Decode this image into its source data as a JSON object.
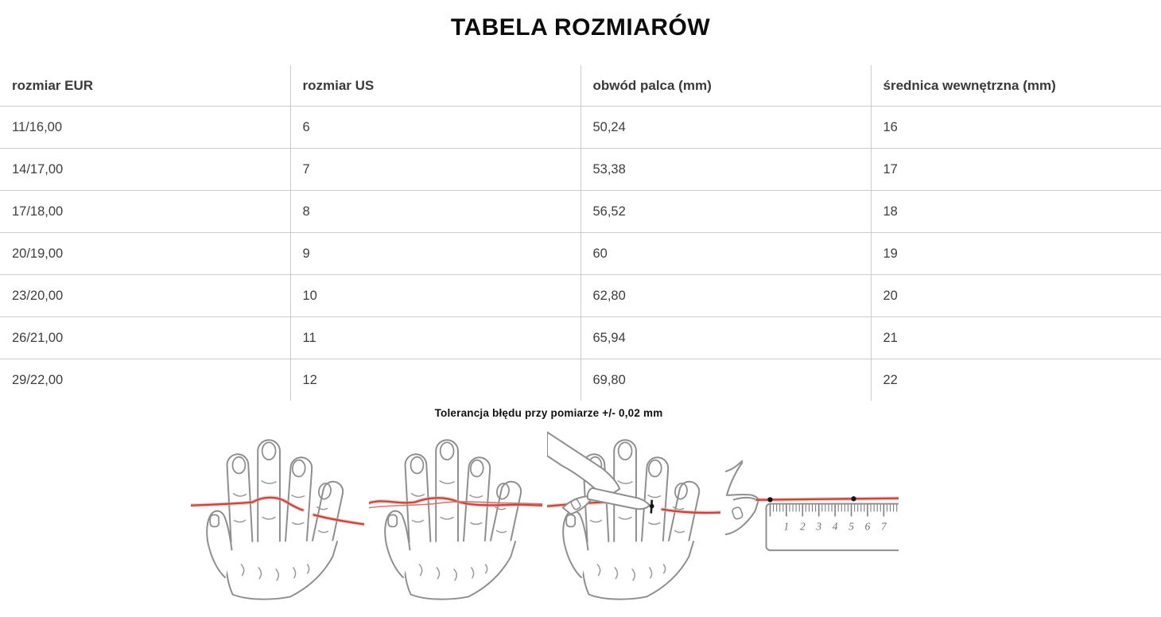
{
  "page": {
    "title": "TABELA ROZMIARÓW",
    "tolerance_note": "Tolerancja błędu przy pomiarze +/- 0,02 mm"
  },
  "table": {
    "columns": [
      "rozmiar EUR",
      "rozmiar US",
      "obwód palca (mm)",
      "średnica wewnętrzna (mm)"
    ],
    "rows": [
      [
        "11/16,00",
        "6",
        "50,24",
        "16"
      ],
      [
        "14/17,00",
        "7",
        "53,38",
        "17"
      ],
      [
        "17/18,00",
        "8",
        "56,52",
        "18"
      ],
      [
        "20/19,00",
        "9",
        "60",
        "19"
      ],
      [
        "23/20,00",
        "10",
        "62,80",
        "20"
      ],
      [
        "26/21,00",
        "11",
        "65,94",
        "21"
      ],
      [
        "29/22,00",
        "12",
        "69,80",
        "22"
      ]
    ]
  },
  "illustrations": [
    {
      "name": "string-around-finger-step-1"
    },
    {
      "name": "string-wrapped-step-2"
    },
    {
      "name": "mark-string-with-pen-step-3"
    },
    {
      "name": "measure-string-on-ruler-step-4"
    }
  ],
  "ruler": {
    "numbers": [
      "1",
      "2",
      "3",
      "4",
      "5",
      "6",
      "7"
    ]
  },
  "colors": {
    "string_red": "#c4463e",
    "string_halo": "#e6aaa4",
    "hand_outline": "#8e8e8e",
    "table_line": "#cccccc",
    "text": "#3e3e3e",
    "mark_black": "#161616"
  }
}
